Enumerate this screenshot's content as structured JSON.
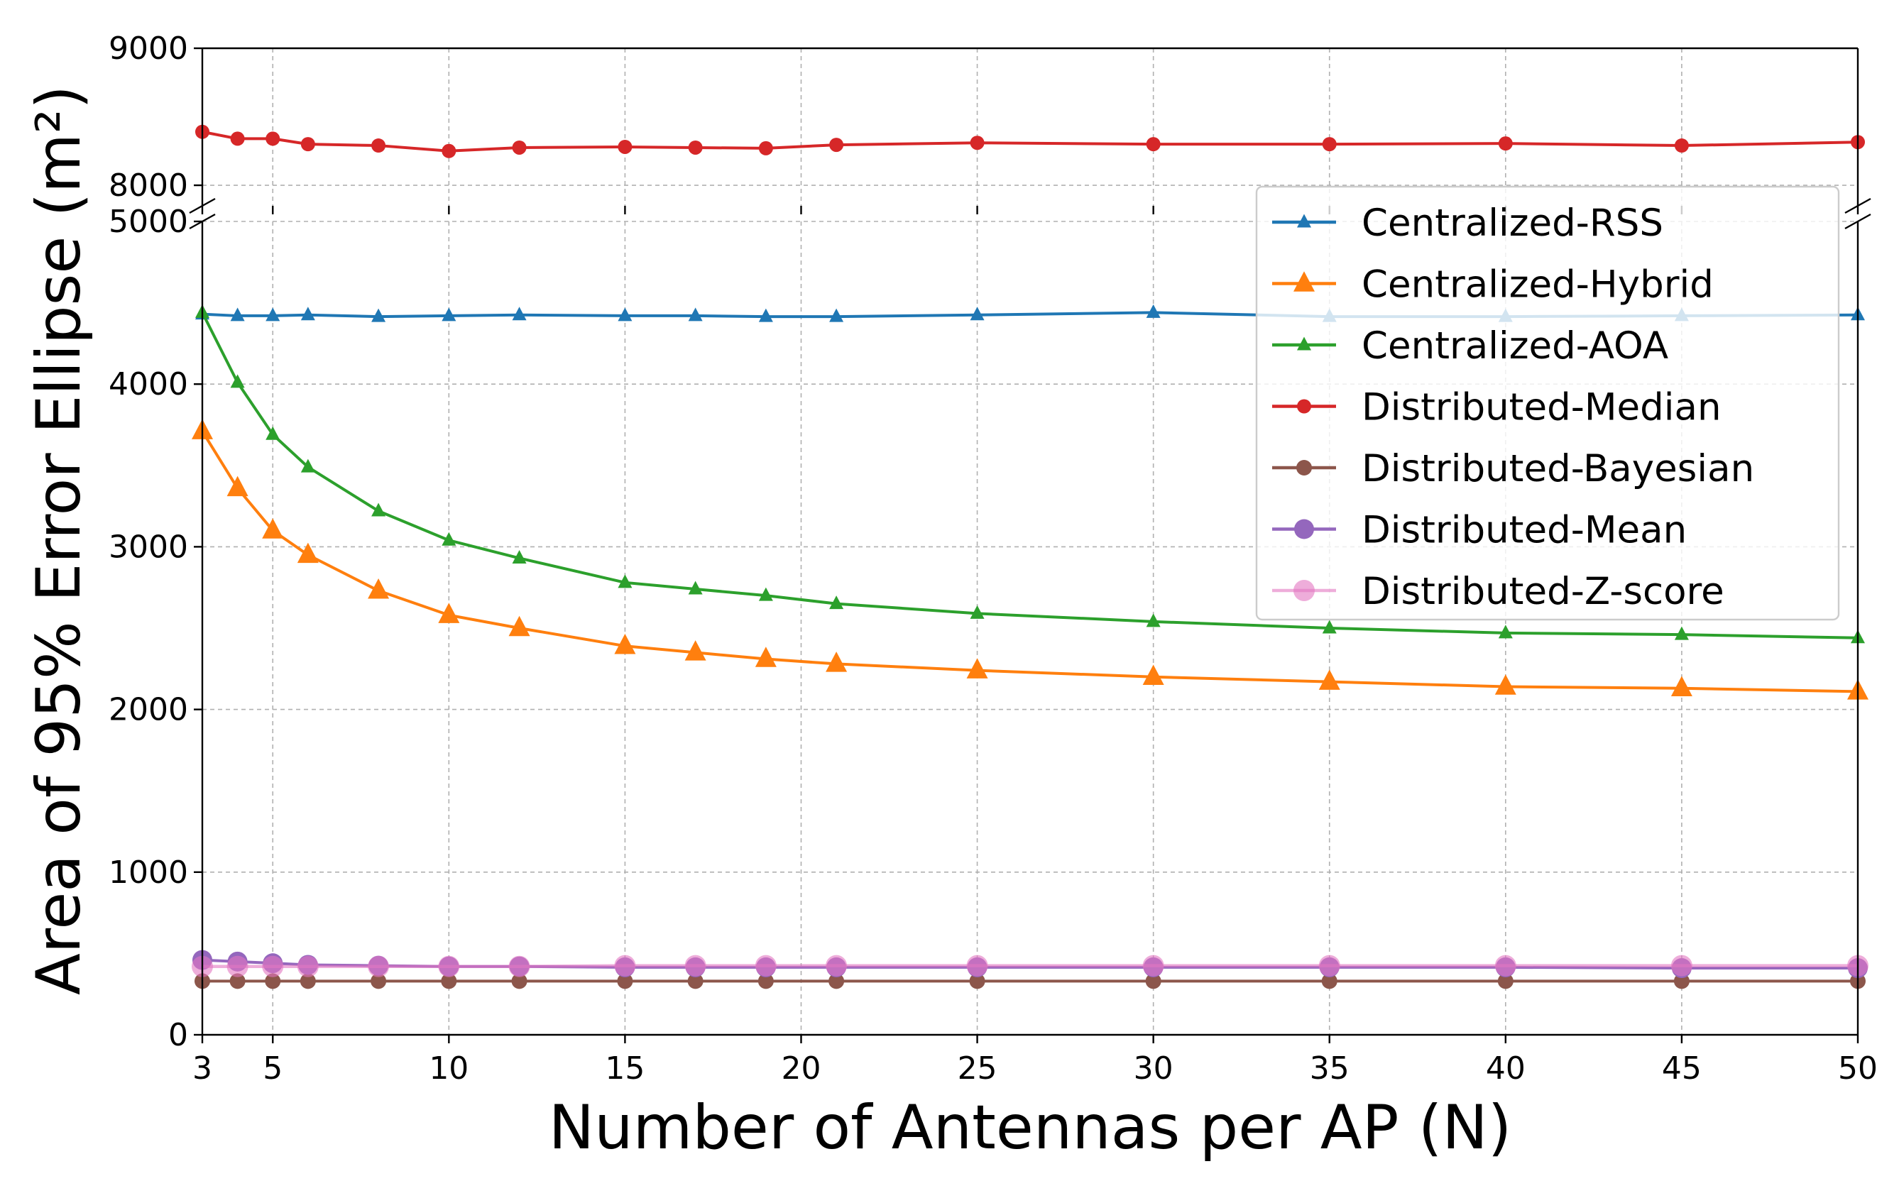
{
  "chart_data": {
    "type": "line",
    "title": "",
    "xlabel": "Number of Antennas per AP (N)",
    "ylabel": "Area of 95% Error Ellipse (m²)",
    "broken_y_axis": true,
    "xlim": [
      3,
      50
    ],
    "x_ticks": [
      3,
      5,
      10,
      15,
      20,
      25,
      30,
      35,
      40,
      45,
      50
    ],
    "upper_ylim": [
      7850,
      9000
    ],
    "upper_y_ticks": [
      8000,
      9000
    ],
    "lower_ylim": [
      0,
      5000
    ],
    "lower_y_ticks": [
      0,
      1000,
      2000,
      3000,
      4000,
      5000
    ],
    "grid": true,
    "legend_position": "upper-right",
    "x": [
      3,
      4,
      5,
      6,
      8,
      10,
      12,
      15,
      17,
      19,
      21,
      25,
      30,
      35,
      40,
      45,
      50
    ],
    "series": [
      {
        "name": "Centralized-RSS",
        "color": "#1f77b4",
        "marker": "triangle-small",
        "values": [
          4430,
          4420,
          4420,
          4425,
          4415,
          4420,
          4425,
          4420,
          4420,
          4415,
          4415,
          4425,
          4440,
          4415,
          4415,
          4420,
          4425
        ]
      },
      {
        "name": "Centralized-Hybrid",
        "color": "#ff7f0e",
        "marker": "triangle-large",
        "values": [
          3710,
          3360,
          3100,
          2950,
          2730,
          2580,
          2500,
          2390,
          2350,
          2310,
          2280,
          2240,
          2200,
          2170,
          2140,
          2130,
          2110
        ]
      },
      {
        "name": "Centralized-AOA",
        "color": "#2ca02c",
        "marker": "triangle-small",
        "values": [
          4440,
          4010,
          3690,
          3490,
          3220,
          3040,
          2930,
          2780,
          2740,
          2700,
          2650,
          2590,
          2540,
          2500,
          2470,
          2460,
          2440
        ]
      },
      {
        "name": "Distributed-Median",
        "color": "#d62728",
        "marker": "circle-small",
        "values": [
          8390,
          8340,
          8340,
          8300,
          8290,
          8250,
          8275,
          8280,
          8275,
          8270,
          8295,
          8310,
          8300,
          8300,
          8305,
          8290,
          8315
        ]
      },
      {
        "name": "Distributed-Bayesian",
        "color": "#8c564b",
        "marker": "circle-medium",
        "values": [
          330,
          330,
          330,
          330,
          330,
          330,
          330,
          330,
          330,
          330,
          330,
          330,
          330,
          330,
          330,
          330,
          330
        ]
      },
      {
        "name": "Distributed-Mean",
        "color": "#9467bd",
        "marker": "circle-large",
        "values": [
          460,
          450,
          440,
          430,
          425,
          420,
          420,
          415,
          415,
          415,
          415,
          415,
          415,
          415,
          415,
          410,
          410
        ]
      },
      {
        "name": "Distributed-Z-score",
        "color": "#e377c2",
        "marker": "circle-large-faded",
        "values": [
          420,
          420,
          420,
          420,
          420,
          420,
          420,
          425,
          425,
          425,
          425,
          425,
          425,
          425,
          425,
          425,
          425
        ]
      }
    ]
  }
}
